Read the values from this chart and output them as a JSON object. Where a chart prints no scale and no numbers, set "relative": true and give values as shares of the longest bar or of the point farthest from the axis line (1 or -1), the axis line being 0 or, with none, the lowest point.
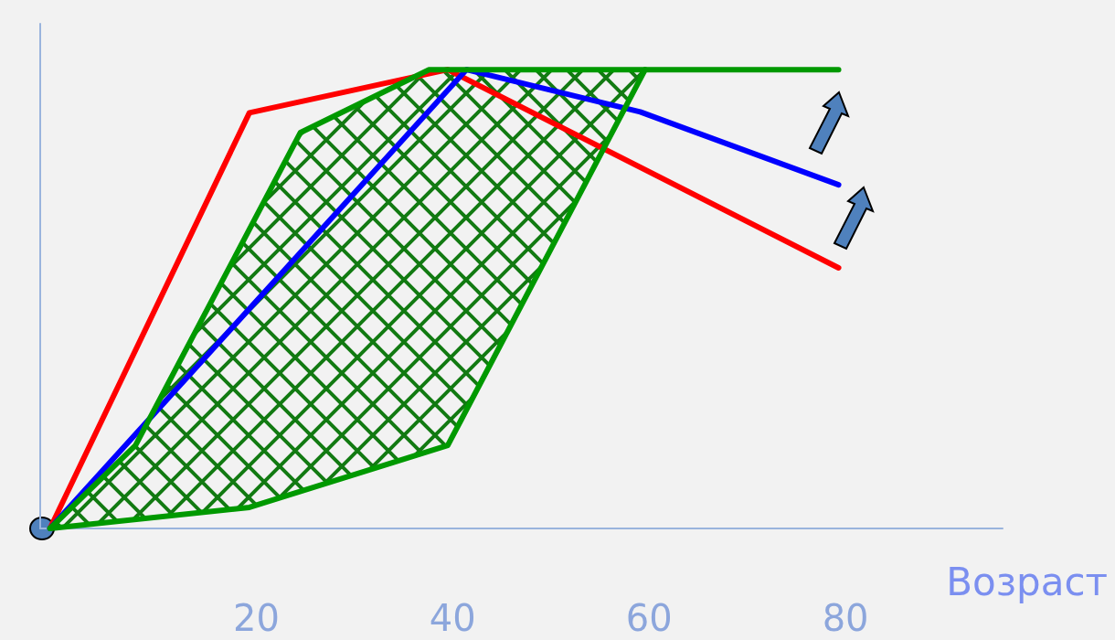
{
  "chart_data": {
    "type": "line",
    "relative": true,
    "xlabel": "Возраст",
    "x": [
      -1,
      19.3,
      39.5,
      79.3
    ],
    "xlim": [
      -2,
      96
    ],
    "xticks": [
      20,
      40,
      60,
      80
    ],
    "grid": false,
    "marker": "none",
    "line_style": "solid",
    "series": [
      {
        "color": "#ff0000",
        "values": [
          0,
          0.906,
          1,
          0.568
        ]
      },
      {
        "color": "#0000ff",
        "x": [
          -1,
          41.4,
          59.1,
          79.3
        ],
        "values": [
          0,
          1,
          0.908,
          0.749
        ]
      },
      {
        "color": "#009900",
        "x": [
          -1,
          7.7,
          24.5,
          37.6,
          79.3
        ],
        "values": [
          0,
          0.181,
          0.863,
          1,
          1
        ]
      },
      {
        "color": "#009900",
        "x": [
          -1,
          19.3,
          39.5,
          59.6
        ],
        "values": [
          0,
          0.046,
          0.181,
          1
        ]
      }
    ]
  }
}
